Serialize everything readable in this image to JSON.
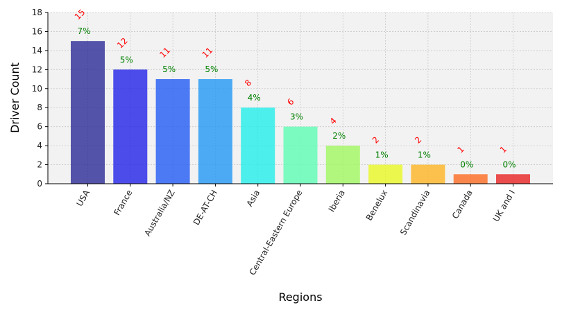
{
  "chart_data": {
    "type": "bar",
    "title": "",
    "xlabel": "Regions",
    "ylabel": "Driver Count",
    "ylim": [
      0,
      18
    ],
    "yticks": [
      0,
      2,
      4,
      6,
      8,
      10,
      12,
      14,
      16,
      18
    ],
    "grid": true,
    "categories": [
      "USA",
      "France",
      "Australia/NZ",
      "DE-AT-CH",
      "Asia",
      "Central-Eastern Europe",
      "Iberia",
      "Benelux",
      "Scandinavia",
      "Canada",
      "UK and I"
    ],
    "values": [
      15,
      12,
      11,
      11,
      8,
      6,
      4,
      2,
      2,
      1,
      1
    ],
    "percent_labels": [
      "7%",
      "5%",
      "5%",
      "5%",
      "4%",
      "3%",
      "2%",
      "1%",
      "1%",
      "0%",
      "0%"
    ],
    "count_labels": [
      "15",
      "12",
      "11",
      "11",
      "8",
      "6",
      "4",
      "2",
      "2",
      "1",
      "1"
    ],
    "bar_colors": [
      "#2a2a96",
      "#2222e8",
      "#225af4",
      "#2296f4",
      "#22eee8",
      "#5efcb4",
      "#a0f860",
      "#e8f822",
      "#fcb422",
      "#fc6a22",
      "#e82222"
    ],
    "colors": {
      "count_label": "#ff0000",
      "percent_label": "#008000",
      "plot_background": "#f2f2f2",
      "grid": "#c8c8c8"
    }
  }
}
